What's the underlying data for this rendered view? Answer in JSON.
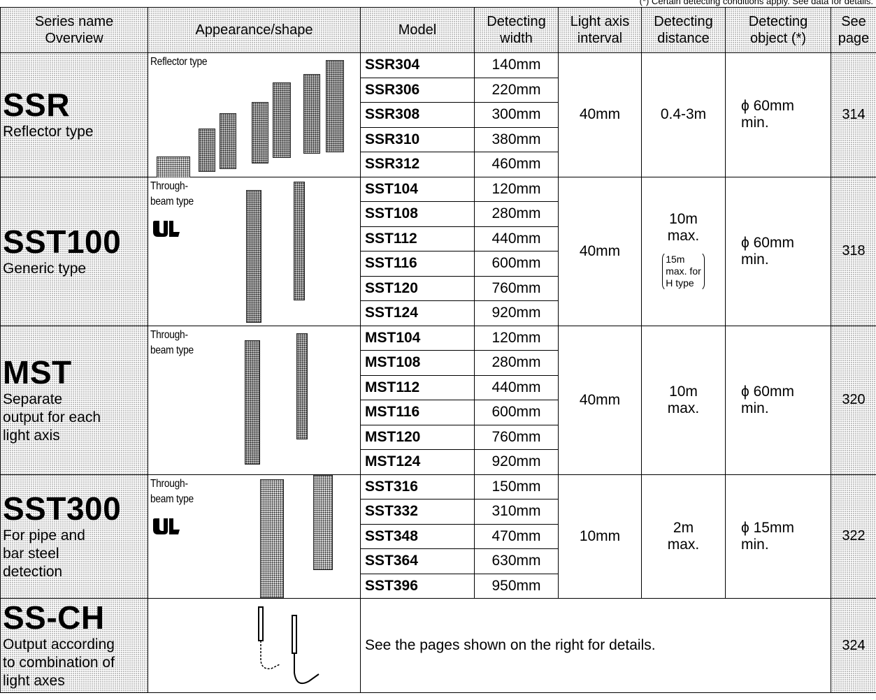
{
  "footnote": "(*) Certain detecting conditions apply. See data for details.",
  "headers": {
    "series": [
      "Series name",
      "Overview"
    ],
    "appearance": "Appearance/shape",
    "model": "Model",
    "width": [
      "Detecting",
      "width"
    ],
    "axis": [
      "Light axis",
      "interval"
    ],
    "distance": [
      "Detecting",
      "distance"
    ],
    "object": [
      "Detecting",
      "object (*)"
    ],
    "page": [
      "See",
      "page"
    ]
  },
  "groups": [
    {
      "name": "SSR",
      "desc": [
        "Reflector type"
      ],
      "ap_label": [
        "Reflector type"
      ],
      "ul": false,
      "rows": [
        {
          "model": "SSR304",
          "width": "140mm"
        },
        {
          "model": "SSR306",
          "width": "220mm"
        },
        {
          "model": "SSR308",
          "width": "300mm"
        },
        {
          "model": "SSR310",
          "width": "380mm"
        },
        {
          "model": "SSR312",
          "width": "460mm"
        }
      ],
      "axis": "40mm",
      "distance": [
        "0.4-3m"
      ],
      "distance_note": [],
      "object": [
        "ϕ 60mm",
        "min."
      ],
      "page": "314"
    },
    {
      "name": "SST100",
      "desc": [
        "Generic type"
      ],
      "ap_label": [
        "Through-",
        "beam type"
      ],
      "ul": true,
      "rows": [
        {
          "model": "SST104",
          "width": "120mm"
        },
        {
          "model": "SST108",
          "width": "280mm"
        },
        {
          "model": "SST112",
          "width": "440mm"
        },
        {
          "model": "SST116",
          "width": "600mm"
        },
        {
          "model": "SST120",
          "width": "760mm"
        },
        {
          "model": "SST124",
          "width": "920mm"
        }
      ],
      "axis": "40mm",
      "distance": [
        "10m",
        "max."
      ],
      "distance_note": [
        "15m",
        "max. for",
        "H type"
      ],
      "object": [
        "ϕ 60mm",
        "min."
      ],
      "page": "318"
    },
    {
      "name": "MST",
      "desc": [
        "Separate",
        "output for each",
        "light axis"
      ],
      "ap_label": [
        "Through-",
        "beam type"
      ],
      "ul": false,
      "rows": [
        {
          "model": "MST104",
          "width": "120mm"
        },
        {
          "model": "MST108",
          "width": "280mm"
        },
        {
          "model": "MST112",
          "width": "440mm"
        },
        {
          "model": "MST116",
          "width": "600mm"
        },
        {
          "model": "MST120",
          "width": "760mm"
        },
        {
          "model": "MST124",
          "width": "920mm"
        }
      ],
      "axis": "40mm",
      "distance": [
        "10m",
        "max."
      ],
      "distance_note": [],
      "object": [
        "ϕ 60mm",
        "min."
      ],
      "page": "320"
    },
    {
      "name": "SST300",
      "desc": [
        "For pipe and",
        "bar steel",
        "detection"
      ],
      "ap_label": [
        "Through-",
        "beam type"
      ],
      "ul": true,
      "rows": [
        {
          "model": "SST316",
          "width": "150mm"
        },
        {
          "model": "SST332",
          "width": "310mm"
        },
        {
          "model": "SST348",
          "width": "470mm"
        },
        {
          "model": "SST364",
          "width": "630mm"
        },
        {
          "model": "SST396",
          "width": "950mm"
        }
      ],
      "axis": "10mm",
      "distance": [
        "2m",
        "max."
      ],
      "distance_note": [],
      "object": [
        "ϕ 15mm",
        "min."
      ],
      "page": "322"
    }
  ],
  "ssch": {
    "name": "SS-CH",
    "desc": [
      "Output according",
      "to combination of",
      "light axes"
    ],
    "note": "See the pages shown on the right for details.",
    "page": "324"
  }
}
